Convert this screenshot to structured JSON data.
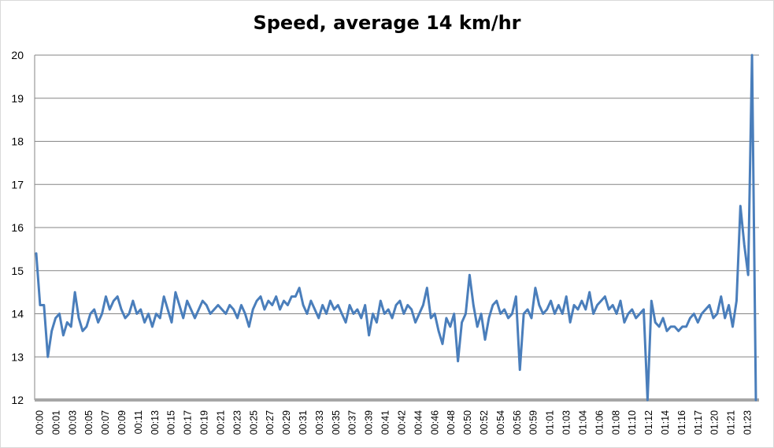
{
  "chart_data": {
    "type": "line",
    "title": "Speed, average 14 km/hr",
    "xlabel": "",
    "ylabel": "",
    "ylim": [
      12,
      20
    ],
    "yticks": [
      12,
      13,
      14,
      15,
      16,
      17,
      18,
      19,
      20
    ],
    "grid": true,
    "legend": "none",
    "line_color": "#4a7ebb",
    "x_tick_labels": [
      "00:00",
      "00:01",
      "00:03",
      "00:05",
      "00:07",
      "00:09",
      "00:11",
      "00:13",
      "00:15",
      "00:17",
      "00:19",
      "00:21",
      "00:23",
      "00:25",
      "00:27",
      "00:29",
      "00:31",
      "00:33",
      "00:35",
      "00:37",
      "00:39",
      "00:41",
      "00:42",
      "00:44",
      "00:46",
      "00:48",
      "00:50",
      "00:52",
      "00:54",
      "00:56",
      "00:59",
      "01:01",
      "01:03",
      "01:04",
      "01:06",
      "01:08",
      "01:10",
      "01:12",
      "01:14",
      "01:16",
      "01:17",
      "01:20",
      "01:21",
      "01:23"
    ],
    "series": [
      {
        "name": "",
        "values": [
          15.4,
          14.2,
          14.2,
          13.0,
          13.6,
          13.9,
          14.0,
          13.5,
          13.8,
          13.7,
          14.5,
          13.9,
          13.6,
          13.7,
          14.0,
          14.1,
          13.8,
          14.0,
          14.4,
          14.1,
          14.3,
          14.4,
          14.1,
          13.9,
          14.0,
          14.3,
          14.0,
          14.1,
          13.8,
          14.0,
          13.7,
          14.0,
          13.9,
          14.4,
          14.1,
          13.8,
          14.5,
          14.2,
          13.9,
          14.3,
          14.1,
          13.9,
          14.1,
          14.3,
          14.2,
          14.0,
          14.1,
          14.2,
          14.1,
          14.0,
          14.2,
          14.1,
          13.9,
          14.2,
          14.0,
          13.7,
          14.1,
          14.3,
          14.4,
          14.1,
          14.3,
          14.2,
          14.4,
          14.1,
          14.3,
          14.2,
          14.4,
          14.4,
          14.6,
          14.2,
          14.0,
          14.3,
          14.1,
          13.9,
          14.2,
          14.0,
          14.3,
          14.1,
          14.2,
          14.0,
          13.8,
          14.2,
          14.0,
          14.1,
          13.9,
          14.2,
          13.5,
          14.0,
          13.8,
          14.3,
          14.0,
          14.1,
          13.9,
          14.2,
          14.3,
          14.0,
          14.2,
          14.1,
          13.8,
          14.0,
          14.2,
          14.6,
          13.9,
          14.0,
          13.6,
          13.3,
          13.9,
          13.7,
          14.0,
          12.9,
          13.8,
          14.0,
          14.9,
          14.2,
          13.7,
          14.0,
          13.4,
          13.9,
          14.2,
          14.3,
          14.0,
          14.1,
          13.9,
          14.0,
          14.4,
          12.7,
          14.0,
          14.1,
          13.9,
          14.6,
          14.2,
          14.0,
          14.1,
          14.3,
          14.0,
          14.2,
          14.0,
          14.4,
          13.8,
          14.2,
          14.1,
          14.3,
          14.1,
          14.5,
          14.0,
          14.2,
          14.3,
          14.4,
          14.1,
          14.2,
          14.0,
          14.3,
          13.8,
          14.0,
          14.1,
          13.9,
          14.0,
          14.1,
          12.0,
          14.3,
          13.8,
          13.7,
          13.9,
          13.6,
          13.7,
          13.7,
          13.6,
          13.7,
          13.7,
          13.9,
          14.0,
          13.8,
          14.0,
          14.1,
          14.2,
          13.9,
          14.0,
          14.4,
          13.9,
          14.2,
          13.7,
          14.3,
          16.5,
          15.6,
          14.9,
          20.0,
          12.0
        ]
      }
    ]
  }
}
